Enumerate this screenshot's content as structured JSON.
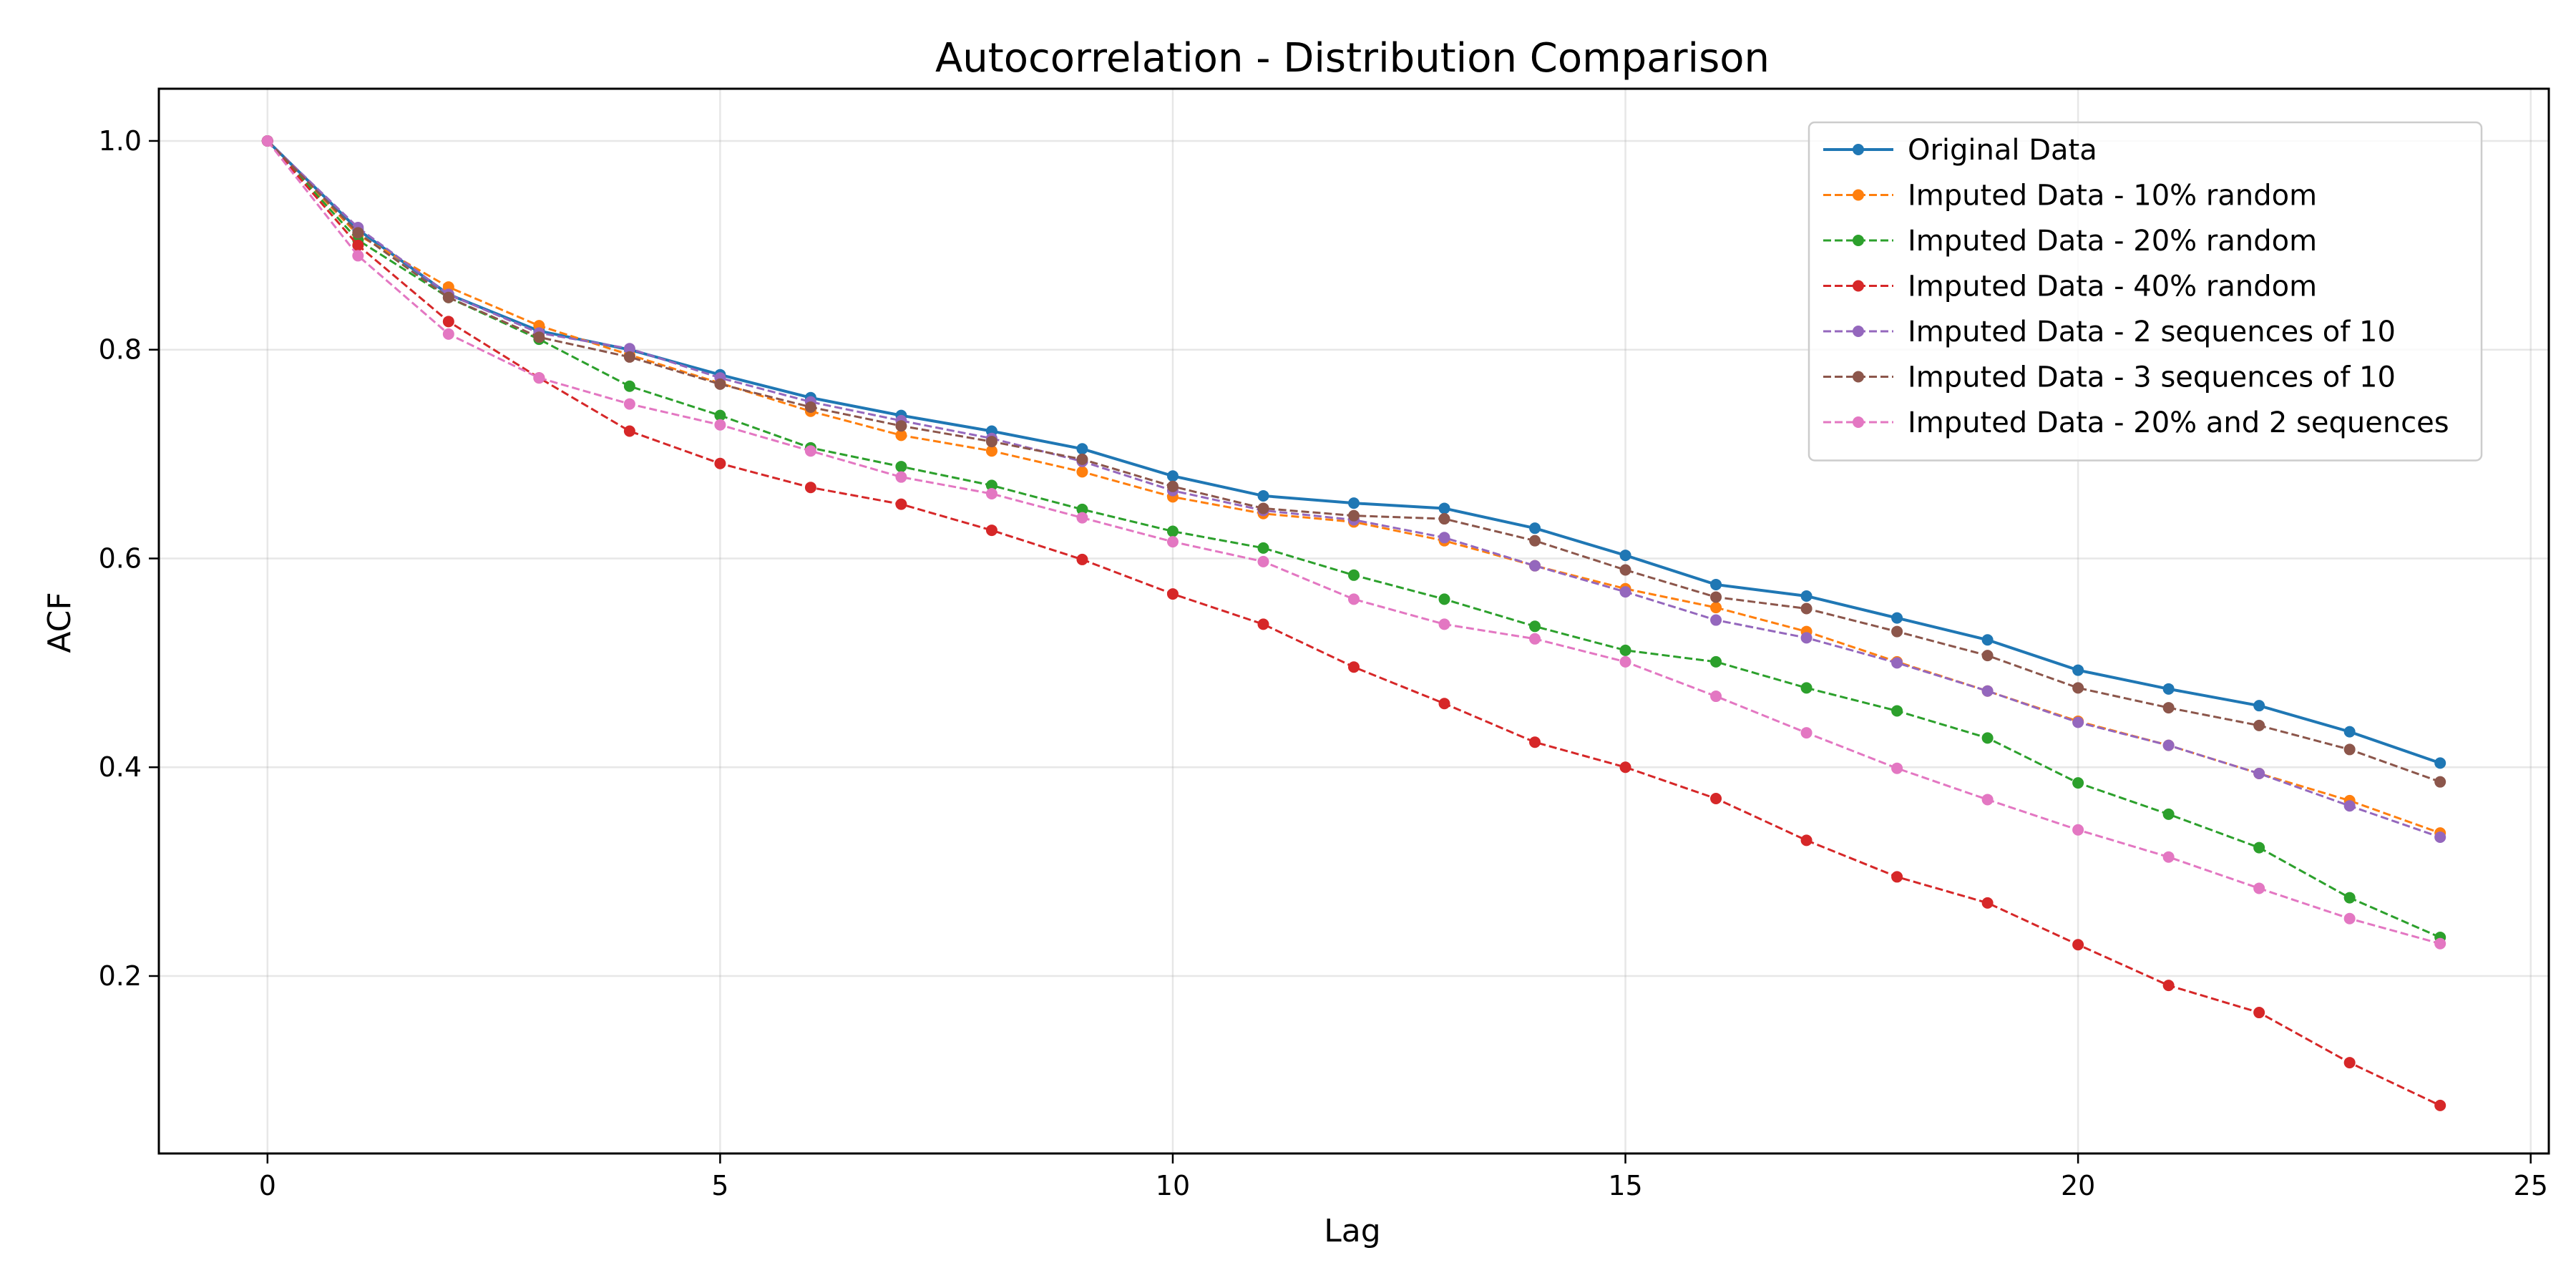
{
  "chart_data": {
    "type": "line",
    "title": "Autocorrelation - Distribution Comparison",
    "xlabel": "Lag",
    "ylabel": "ACF",
    "xlim": [
      -1.2,
      25.2
    ],
    "ylim": [
      0.03,
      1.05
    ],
    "xticks": [
      0,
      5,
      10,
      15,
      20,
      25
    ],
    "yticks": [
      0.2,
      0.4,
      0.6,
      0.8,
      1.0
    ],
    "grid": true,
    "legend_position": "top-right",
    "x": [
      0,
      1,
      2,
      3,
      4,
      5,
      6,
      7,
      8,
      9,
      10,
      11,
      12,
      13,
      14,
      15,
      16,
      17,
      18,
      19,
      20,
      21,
      22,
      23,
      24
    ],
    "series": [
      {
        "name": "Original Data",
        "color": "#1f77b4",
        "line_style": "solid",
        "values": [
          1.0,
          0.915,
          0.853,
          0.818,
          0.8,
          0.776,
          0.754,
          0.737,
          0.722,
          0.705,
          0.679,
          0.66,
          0.653,
          0.648,
          0.629,
          0.603,
          0.575,
          0.564,
          0.543,
          0.522,
          0.493,
          0.475,
          0.459,
          0.434,
          0.404
        ]
      },
      {
        "name": "Imputed Data - 10% random",
        "color": "#ff7f0e",
        "line_style": "dashed",
        "values": [
          1.0,
          0.91,
          0.86,
          0.823,
          0.795,
          0.768,
          0.741,
          0.718,
          0.703,
          0.683,
          0.659,
          0.643,
          0.635,
          0.617,
          0.593,
          0.571,
          0.553,
          0.53,
          0.501,
          0.473,
          0.444,
          0.421,
          0.394,
          0.368,
          0.337
        ]
      },
      {
        "name": "Imputed Data - 20% random",
        "color": "#2ca02c",
        "line_style": "dashed",
        "values": [
          1.0,
          0.905,
          0.85,
          0.81,
          0.765,
          0.737,
          0.706,
          0.688,
          0.67,
          0.647,
          0.626,
          0.61,
          0.584,
          0.561,
          0.535,
          0.512,
          0.501,
          0.476,
          0.454,
          0.428,
          0.385,
          0.355,
          0.323,
          0.275,
          0.237
        ]
      },
      {
        "name": "Imputed Data - 40% random",
        "color": "#d62728",
        "line_style": "dashed",
        "values": [
          1.0,
          0.9,
          0.827,
          0.773,
          0.722,
          0.691,
          0.668,
          0.652,
          0.627,
          0.599,
          0.566,
          0.537,
          0.496,
          0.461,
          0.424,
          0.4,
          0.37,
          0.33,
          0.295,
          0.27,
          0.23,
          0.191,
          0.165,
          0.117,
          0.076
        ]
      },
      {
        "name": "Imputed Data - 2 sequences of 10",
        "color": "#9467bd",
        "line_style": "dashed",
        "values": [
          1.0,
          0.917,
          0.853,
          0.816,
          0.801,
          0.773,
          0.75,
          0.732,
          0.715,
          0.693,
          0.665,
          0.646,
          0.637,
          0.62,
          0.593,
          0.568,
          0.541,
          0.524,
          0.5,
          0.473,
          0.443,
          0.421,
          0.394,
          0.363,
          0.333
        ]
      },
      {
        "name": "Imputed Data - 3 sequences of 10",
        "color": "#8c564b",
        "line_style": "dashed",
        "values": [
          1.0,
          0.912,
          0.85,
          0.812,
          0.793,
          0.767,
          0.745,
          0.727,
          0.712,
          0.695,
          0.669,
          0.648,
          0.641,
          0.638,
          0.617,
          0.589,
          0.563,
          0.552,
          0.53,
          0.507,
          0.476,
          0.457,
          0.44,
          0.417,
          0.386
        ]
      },
      {
        "name": "Imputed Data - 20% and 2 sequences",
        "color": "#e377c2",
        "line_style": "dashed",
        "values": [
          1.0,
          0.89,
          0.815,
          0.773,
          0.748,
          0.728,
          0.703,
          0.678,
          0.662,
          0.639,
          0.616,
          0.597,
          0.561,
          0.537,
          0.523,
          0.501,
          0.468,
          0.433,
          0.399,
          0.369,
          0.34,
          0.314,
          0.284,
          0.255,
          0.231
        ]
      }
    ]
  }
}
